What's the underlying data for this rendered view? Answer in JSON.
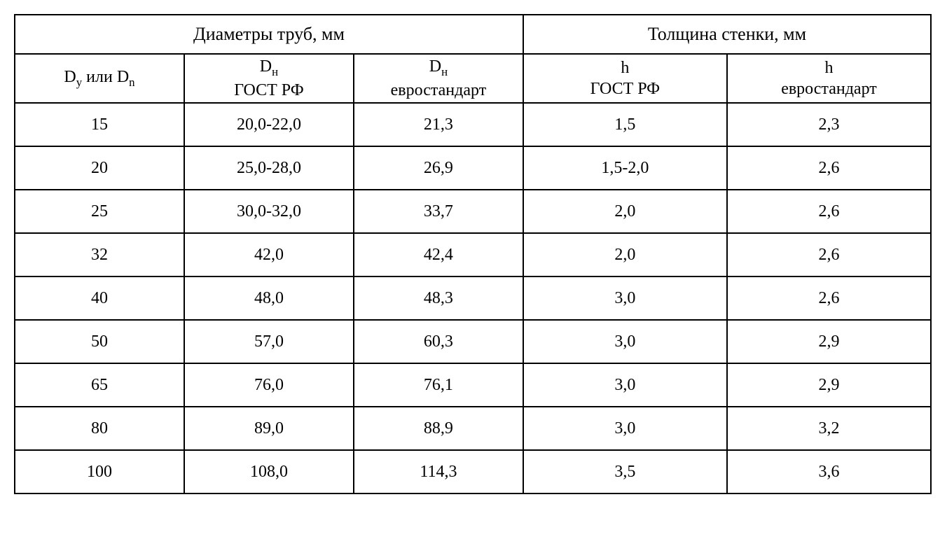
{
  "table": {
    "type": "table",
    "background_color": "#ffffff",
    "border_color": "#000000",
    "text_color": "#000000",
    "font_family": "Times New Roman",
    "header_top_fontsize": 26,
    "header_sub_fontsize": 24,
    "cell_fontsize": 24,
    "column_widths_pct": [
      18.5,
      18.5,
      18.5,
      22.25,
      22.25
    ],
    "header_groups": [
      {
        "label": "Диаметры труб, мм",
        "span": 3
      },
      {
        "label": "Толщина стенки, мм",
        "span": 2
      }
    ],
    "columns": [
      {
        "label_html": "D<sub>у</sub> или D<sub>n</sub>"
      },
      {
        "label_html": "D<sub>н</sub><br>ГОСТ РФ"
      },
      {
        "label_html": "D<sub>н</sub><br>евростандарт"
      },
      {
        "label_html": "h<br>ГОСТ РФ"
      },
      {
        "label_html": "h<br>евростандарт"
      }
    ],
    "rows": [
      [
        "15",
        "20,0-22,0",
        "21,3",
        "1,5",
        "2,3"
      ],
      [
        "20",
        "25,0-28,0",
        "26,9",
        "1,5-2,0",
        "2,6"
      ],
      [
        "25",
        "30,0-32,0",
        "33,7",
        "2,0",
        "2,6"
      ],
      [
        "32",
        "42,0",
        "42,4",
        "2,0",
        "2,6"
      ],
      [
        "40",
        "48,0",
        "48,3",
        "3,0",
        "2,6"
      ],
      [
        "50",
        "57,0",
        "60,3",
        "3,0",
        "2,9"
      ],
      [
        "65",
        "76,0",
        "76,1",
        "3,0",
        "2,9"
      ],
      [
        "80",
        "89,0",
        "88,9",
        "3,0",
        "3,2"
      ],
      [
        "100",
        "108,0",
        "114,3",
        "3,5",
        "3,6"
      ]
    ]
  }
}
